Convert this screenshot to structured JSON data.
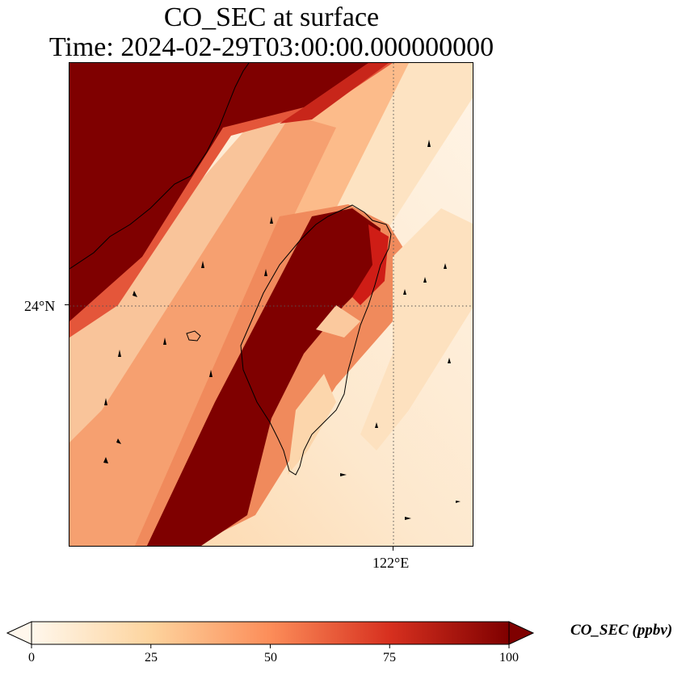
{
  "title": {
    "line1": "CO_SEC at surface",
    "line2": "Time: 2024-02-29T03:00:00.000000000"
  },
  "map": {
    "lat_tick_label": "24°N",
    "lon_tick_label": "122°E",
    "gridlines": "dotted",
    "features": [
      "coastline-mainland",
      "coastline-taiwan",
      "wind-arrows"
    ]
  },
  "colorbar": {
    "label": "CO_SEC (ppbv)",
    "ticks": [
      "0",
      "25",
      "50",
      "75",
      "100"
    ],
    "range": [
      0,
      100
    ],
    "colormap": "OrRd",
    "colors": [
      "#fff7ec",
      "#fdd49e",
      "#fc8d59",
      "#d7301f",
      "#7f0000"
    ],
    "extend": "both"
  }
}
